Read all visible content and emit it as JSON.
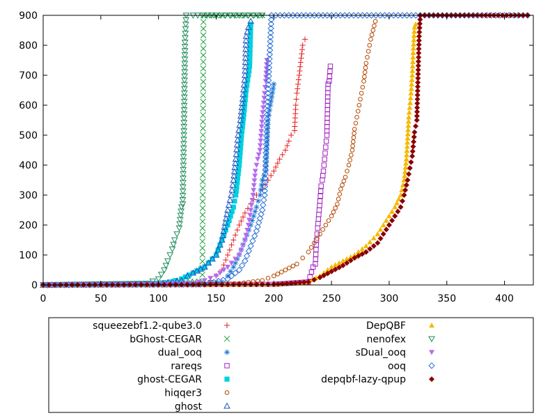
{
  "chart_data": {
    "type": "scatter",
    "title": "",
    "xlabel": "",
    "ylabel": "",
    "xlim": [
      0,
      425
    ],
    "ylim": [
      0,
      900
    ],
    "xticks": [
      0,
      50,
      100,
      150,
      200,
      250,
      300,
      350,
      400
    ],
    "yticks": [
      0,
      100,
      200,
      300,
      400,
      500,
      600,
      700,
      800,
      900
    ],
    "legend_position": "bottom",
    "grid": false,
    "series": [
      {
        "name": "squeezebf1.2-qube3.0",
        "color": "#e41a1c",
        "marker": "plus",
        "points": [
          [
            0,
            0
          ],
          [
            100,
            1
          ],
          [
            130,
            3
          ],
          [
            140,
            8
          ],
          [
            145,
            15
          ],
          [
            150,
            30
          ],
          [
            155,
            50
          ],
          [
            160,
            100
          ],
          [
            165,
            150
          ],
          [
            170,
            200
          ],
          [
            175,
            240
          ],
          [
            180,
            270
          ],
          [
            185,
            300
          ],
          [
            190,
            320
          ],
          [
            195,
            350
          ],
          [
            200,
            380
          ],
          [
            205,
            420
          ],
          [
            210,
            450
          ],
          [
            213,
            480
          ],
          [
            215,
            500
          ],
          [
            218,
            515
          ],
          [
            219,
            600
          ],
          [
            220,
            640
          ],
          [
            222,
            700
          ],
          [
            225,
            800
          ],
          [
            227,
            820
          ]
        ]
      },
      {
        "name": "bGhost-CEGAR",
        "color": "#1b9e3a",
        "marker": "cross",
        "points": [
          [
            0,
            0
          ],
          [
            100,
            5
          ],
          [
            120,
            10
          ],
          [
            135,
            11
          ],
          [
            138,
            12
          ],
          [
            139,
            900
          ],
          [
            150,
            900
          ],
          [
            160,
            900
          ],
          [
            170,
            900
          ],
          [
            180,
            900
          ],
          [
            190,
            900
          ]
        ]
      },
      {
        "name": "dual_ooq",
        "color": "#1f78d1",
        "marker": "asterisk",
        "points": [
          [
            0,
            0
          ],
          [
            140,
            2
          ],
          [
            155,
            10
          ],
          [
            160,
            30
          ],
          [
            165,
            60
          ],
          [
            170,
            100
          ],
          [
            175,
            150
          ],
          [
            180,
            200
          ],
          [
            185,
            260
          ],
          [
            188,
            300
          ],
          [
            190,
            350
          ],
          [
            193,
            380
          ],
          [
            195,
            550
          ],
          [
            197,
            600
          ],
          [
            200,
            670
          ]
        ]
      },
      {
        "name": "rareqs",
        "color": "#a020c0",
        "marker": "square",
        "points": [
          [
            0,
            0
          ],
          [
            200,
            2
          ],
          [
            230,
            10
          ],
          [
            234,
            60
          ],
          [
            236,
            70
          ],
          [
            237,
            150
          ],
          [
            238,
            190
          ],
          [
            240,
            280
          ],
          [
            241,
            330
          ],
          [
            242,
            350
          ],
          [
            243,
            380
          ],
          [
            244,
            420
          ],
          [
            245,
            460
          ],
          [
            246,
            500
          ],
          [
            247,
            670
          ],
          [
            248,
            680
          ],
          [
            249,
            730
          ]
        ]
      },
      {
        "name": "ghost-CEGAR",
        "color": "#00d0e0",
        "marker": "filled-square",
        "points": [
          [
            0,
            0
          ],
          [
            100,
            5
          ],
          [
            110,
            10
          ],
          [
            120,
            20
          ],
          [
            130,
            40
          ],
          [
            140,
            60
          ],
          [
            150,
            100
          ],
          [
            155,
            150
          ],
          [
            160,
            200
          ],
          [
            165,
            260
          ],
          [
            167,
            300
          ],
          [
            170,
            400
          ],
          [
            172,
            500
          ],
          [
            174,
            570
          ],
          [
            176,
            650
          ],
          [
            178,
            700
          ],
          [
            179,
            730
          ],
          [
            180,
            870
          ]
        ]
      },
      {
        "name": "hiqqer3",
        "color": "#b34700",
        "marker": "circle",
        "points": [
          [
            0,
            0
          ],
          [
            150,
            2
          ],
          [
            170,
            5
          ],
          [
            190,
            15
          ],
          [
            200,
            30
          ],
          [
            210,
            50
          ],
          [
            220,
            70
          ],
          [
            225,
            90
          ],
          [
            230,
            110
          ],
          [
            235,
            140
          ],
          [
            240,
            170
          ],
          [
            245,
            200
          ],
          [
            250,
            230
          ],
          [
            255,
            270
          ],
          [
            258,
            320
          ],
          [
            262,
            360
          ],
          [
            265,
            400
          ],
          [
            268,
            450
          ],
          [
            270,
            520
          ],
          [
            272,
            560
          ],
          [
            274,
            600
          ],
          [
            276,
            640
          ],
          [
            278,
            680
          ],
          [
            280,
            740
          ],
          [
            282,
            780
          ],
          [
            284,
            820
          ],
          [
            286,
            850
          ],
          [
            288,
            880
          ]
        ]
      },
      {
        "name": "ghost",
        "color": "#1f4fbf",
        "marker": "triangle",
        "points": [
          [
            0,
            0
          ],
          [
            100,
            3
          ],
          [
            120,
            15
          ],
          [
            125,
            30
          ],
          [
            130,
            40
          ],
          [
            140,
            60
          ],
          [
            150,
            100
          ],
          [
            155,
            150
          ],
          [
            160,
            250
          ],
          [
            163,
            300
          ],
          [
            165,
            350
          ],
          [
            167,
            420
          ],
          [
            169,
            500
          ],
          [
            171,
            550
          ],
          [
            173,
            620
          ],
          [
            175,
            700
          ],
          [
            176,
            830
          ],
          [
            178,
            860
          ],
          [
            180,
            880
          ]
        ]
      },
      {
        "name": "DepQBF",
        "color": "#f5b800",
        "marker": "filled-triangle",
        "points": [
          [
            0,
            0
          ],
          [
            200,
            2
          ],
          [
            230,
            10
          ],
          [
            240,
            30
          ],
          [
            250,
            60
          ],
          [
            260,
            80
          ],
          [
            270,
            100
          ],
          [
            280,
            130
          ],
          [
            290,
            170
          ],
          [
            295,
            200
          ],
          [
            300,
            230
          ],
          [
            305,
            260
          ],
          [
            310,
            300
          ],
          [
            313,
            350
          ],
          [
            315,
            420
          ],
          [
            317,
            560
          ],
          [
            319,
            640
          ],
          [
            320,
            700
          ],
          [
            321,
            790
          ],
          [
            322,
            860
          ],
          [
            323,
            870
          ]
        ]
      },
      {
        "name": "nenofex",
        "color": "#1b8a5a",
        "marker": "triangle-down",
        "points": [
          [
            0,
            0
          ],
          [
            90,
            5
          ],
          [
            100,
            20
          ],
          [
            105,
            50
          ],
          [
            108,
            80
          ],
          [
            110,
            100
          ],
          [
            112,
            120
          ],
          [
            114,
            150
          ],
          [
            116,
            170
          ],
          [
            118,
            190
          ],
          [
            120,
            260
          ],
          [
            121,
            270
          ],
          [
            122,
            500
          ],
          [
            123,
            810
          ],
          [
            124,
            900
          ],
          [
            130,
            900
          ],
          [
            150,
            900
          ],
          [
            170,
            900
          ],
          [
            190,
            900
          ]
        ]
      },
      {
        "name": "sDual_ooq",
        "color": "#b56cf0",
        "marker": "filled-triangle-down",
        "points": [
          [
            0,
            0
          ],
          [
            130,
            5
          ],
          [
            140,
            15
          ],
          [
            150,
            30
          ],
          [
            160,
            60
          ],
          [
            170,
            100
          ],
          [
            175,
            150
          ],
          [
            178,
            200
          ],
          [
            180,
            250
          ],
          [
            182,
            300
          ],
          [
            184,
            380
          ],
          [
            186,
            420
          ],
          [
            188,
            450
          ],
          [
            190,
            560
          ],
          [
            192,
            640
          ],
          [
            193,
            680
          ],
          [
            194,
            750
          ]
        ]
      },
      {
        "name": "ooq",
        "color": "#2a6fd6",
        "marker": "diamond",
        "points": [
          [
            0,
            0
          ],
          [
            140,
            2
          ],
          [
            160,
            20
          ],
          [
            170,
            50
          ],
          [
            175,
            80
          ],
          [
            180,
            130
          ],
          [
            185,
            180
          ],
          [
            190,
            250
          ],
          [
            192,
            300
          ],
          [
            194,
            540
          ],
          [
            196,
            740
          ],
          [
            198,
            900
          ],
          [
            250,
            900
          ],
          [
            300,
            900
          ],
          [
            350,
            900
          ],
          [
            400,
            900
          ],
          [
            420,
            900
          ]
        ]
      },
      {
        "name": "depqbf-lazy-qpup",
        "color": "#8b0000",
        "marker": "filled-diamond",
        "points": [
          [
            0,
            0
          ],
          [
            200,
            2
          ],
          [
            230,
            10
          ],
          [
            240,
            25
          ],
          [
            250,
            45
          ],
          [
            260,
            65
          ],
          [
            270,
            90
          ],
          [
            280,
            110
          ],
          [
            290,
            140
          ],
          [
            295,
            170
          ],
          [
            300,
            200
          ],
          [
            305,
            230
          ],
          [
            310,
            260
          ],
          [
            313,
            300
          ],
          [
            316,
            350
          ],
          [
            318,
            390
          ],
          [
            320,
            430
          ],
          [
            322,
            510
          ],
          [
            324,
            550
          ],
          [
            326,
            830
          ],
          [
            327,
            900
          ],
          [
            350,
            900
          ],
          [
            380,
            900
          ],
          [
            420,
            900
          ]
        ]
      }
    ]
  }
}
